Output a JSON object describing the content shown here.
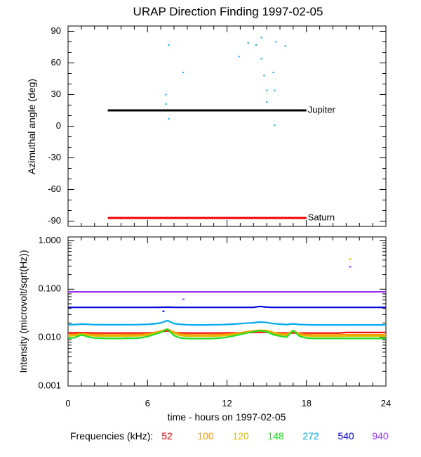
{
  "chart_data": [
    {
      "type": "scatter",
      "title": "URAP Direction Finding  1997-02-05",
      "ylabel": "Azimuthal angle (deg)",
      "xlabel": "",
      "xlim": [
        0,
        24
      ],
      "ylim": [
        -95,
        95
      ],
      "yticks": [
        90,
        60,
        30,
        0,
        -30,
        -60,
        -90
      ],
      "ytick_labels": [
        "90",
        "60",
        "30",
        "0",
        "-30",
        "-60",
        "-90"
      ],
      "reference_lines": [
        {
          "name": "Jupiter",
          "y": 15,
          "x": [
            3,
            18
          ],
          "color": "#000000"
        },
        {
          "name": "Saturn",
          "y": -87,
          "x": [
            3,
            18
          ],
          "color": "#ee0000"
        }
      ],
      "series": [
        {
          "name": "Direction points",
          "color": "#00aaee",
          "points": [
            [
              7.6,
              77
            ],
            [
              8.7,
              51
            ],
            [
              7.4,
              30
            ],
            [
              7.4,
              21
            ],
            [
              7.6,
              7
            ],
            [
              12.9,
              66
            ],
            [
              13.6,
              79
            ],
            [
              14.2,
              77
            ],
            [
              14.6,
              84
            ],
            [
              14.6,
              64
            ],
            [
              14.8,
              48
            ],
            [
              15.0,
              34
            ],
            [
              15.0,
              23
            ],
            [
              15.5,
              51
            ],
            [
              15.6,
              34
            ],
            [
              15.7,
              80
            ],
            [
              16.4,
              76
            ],
            [
              15.6,
              1
            ]
          ]
        }
      ]
    },
    {
      "type": "line",
      "title": "",
      "ylabel": "Intensity (microvolt/sqrt(Hz))",
      "xlabel": "time - hours on 1997-02-05",
      "xlim": [
        0,
        24
      ],
      "yscale": "log",
      "ylim": [
        0.001,
        1.2
      ],
      "yticks": [
        1.0,
        0.1,
        0.01,
        0.001
      ],
      "ytick_labels": [
        "1.000",
        "0.100",
        "0.010",
        "0.001"
      ],
      "xticks": [
        0,
        6,
        12,
        18,
        24
      ],
      "xtick_labels": [
        "0",
        "6",
        "12",
        "18",
        "24"
      ],
      "x": [
        0,
        0.5,
        1,
        1.5,
        2,
        2.5,
        3,
        3.5,
        4,
        4.5,
        5,
        5.5,
        6,
        6.5,
        7,
        7.5,
        8,
        8.5,
        9,
        9.5,
        10,
        10.5,
        11,
        11.5,
        12,
        12.5,
        13,
        13.5,
        14,
        14.5,
        15,
        15.5,
        16,
        16.5,
        17,
        17.5,
        18,
        18.5,
        19,
        19.5,
        20,
        20.5,
        21,
        21.5,
        22,
        22.5,
        23,
        23.5,
        24
      ],
      "series": [
        {
          "name": "52",
          "color": "#ee0000",
          "values": [
            0.0125,
            0.0125,
            0.0126,
            0.0125,
            0.0124,
            0.0124,
            0.0124,
            0.0124,
            0.0124,
            0.0124,
            0.0124,
            0.0124,
            0.0125,
            0.0127,
            0.0132,
            0.0138,
            0.0128,
            0.0125,
            0.0124,
            0.0124,
            0.0124,
            0.0124,
            0.0124,
            0.0124,
            0.0125,
            0.0125,
            0.0126,
            0.0127,
            0.0128,
            0.0129,
            0.0129,
            0.0126,
            0.0125,
            0.0124,
            0.0124,
            0.0124,
            0.0124,
            0.0124,
            0.0124,
            0.0124,
            0.0124,
            0.0124,
            0.0128,
            0.0128,
            0.0128,
            0.0128,
            0.0128,
            0.0128,
            0.0128
          ]
        },
        {
          "name": "100",
          "color": "#ff9900",
          "values": [
            0.0115,
            0.0116,
            0.0121,
            0.0118,
            0.0115,
            0.0115,
            0.0114,
            0.0114,
            0.0115,
            0.0115,
            0.0115,
            0.0116,
            0.012,
            0.0127,
            0.0136,
            0.015,
            0.013,
            0.0118,
            0.0115,
            0.0114,
            0.0114,
            0.0114,
            0.0115,
            0.0116,
            0.0118,
            0.0121,
            0.0126,
            0.0132,
            0.0138,
            0.0142,
            0.014,
            0.0128,
            0.0122,
            0.0118,
            0.0138,
            0.012,
            0.0115,
            0.0114,
            0.0114,
            0.0114,
            0.0114,
            0.0114,
            0.0115,
            0.0115,
            0.0115,
            0.0115,
            0.0115,
            0.0115,
            0.0115
          ]
        },
        {
          "name": "120",
          "color": "#ddbb00",
          "values": [
            0.0108,
            0.011,
            0.0118,
            0.0112,
            0.0108,
            0.0107,
            0.0107,
            0.0107,
            0.0107,
            0.0107,
            0.0108,
            0.0109,
            0.0113,
            0.0121,
            0.0131,
            0.0148,
            0.0122,
            0.011,
            0.0107,
            0.0106,
            0.0106,
            0.0106,
            0.0107,
            0.0108,
            0.0111,
            0.0115,
            0.0121,
            0.0128,
            0.0134,
            0.0138,
            0.0135,
            0.0122,
            0.0115,
            0.0111,
            0.0135,
            0.0113,
            0.0108,
            0.0106,
            0.0106,
            0.0106,
            0.0106,
            0.0106,
            0.0107,
            0.0107,
            0.0107,
            0.0107,
            0.0107,
            0.0107,
            0.0107
          ]
        },
        {
          "name": "148",
          "color": "#22dd22",
          "values": [
            0.0097,
            0.01,
            0.0114,
            0.0104,
            0.0098,
            0.0097,
            0.0096,
            0.0096,
            0.0096,
            0.0097,
            0.0097,
            0.0099,
            0.0105,
            0.0116,
            0.0128,
            0.015,
            0.011,
            0.0098,
            0.0096,
            0.0095,
            0.0095,
            0.0095,
            0.0096,
            0.0098,
            0.0102,
            0.0108,
            0.0116,
            0.0124,
            0.0132,
            0.014,
            0.0132,
            0.0115,
            0.0107,
            0.0102,
            0.014,
            0.0106,
            0.0098,
            0.0096,
            0.0096,
            0.0096,
            0.0096,
            0.0096,
            0.0096,
            0.0096,
            0.0096,
            0.0096,
            0.0096,
            0.0096,
            0.0096
          ]
        },
        {
          "name": "272",
          "color": "#00aaee",
          "values": [
            0.0185,
            0.0186,
            0.019,
            0.0188,
            0.0185,
            0.0184,
            0.0184,
            0.0184,
            0.0184,
            0.0184,
            0.0185,
            0.0186,
            0.0188,
            0.0192,
            0.02,
            0.0225,
            0.0195,
            0.0187,
            0.0184,
            0.0183,
            0.0183,
            0.0183,
            0.0184,
            0.0185,
            0.0187,
            0.019,
            0.0194,
            0.0198,
            0.0202,
            0.021,
            0.0205,
            0.0194,
            0.019,
            0.0186,
            0.0192,
            0.0186,
            0.0184,
            0.0183,
            0.0183,
            0.0183,
            0.0183,
            0.0183,
            0.0183,
            0.0183,
            0.0183,
            0.0183,
            0.0183,
            0.0183,
            0.0183
          ]
        },
        {
          "name": "540",
          "color": "#0000dd",
          "values": [
            0.042,
            0.042,
            0.042,
            0.042,
            0.042,
            0.042,
            0.042,
            0.042,
            0.042,
            0.042,
            0.042,
            0.042,
            0.042,
            0.042,
            0.0422,
            0.0425,
            0.042,
            0.042,
            0.042,
            0.042,
            0.042,
            0.042,
            0.042,
            0.042,
            0.042,
            0.042,
            0.042,
            0.042,
            0.042,
            0.044,
            0.0425,
            0.042,
            0.042,
            0.042,
            0.042,
            0.042,
            0.042,
            0.042,
            0.042,
            0.042,
            0.042,
            0.042,
            0.042,
            0.042,
            0.042,
            0.042,
            0.042,
            0.042,
            0.042
          ]
        },
        {
          "name": "940",
          "color": "#9933ff",
          "values": [
            0.088,
            0.088,
            0.088,
            0.088,
            0.088,
            0.088,
            0.088,
            0.088,
            0.088,
            0.088,
            0.088,
            0.088,
            0.088,
            0.088,
            0.088,
            0.088,
            0.088,
            0.088,
            0.088,
            0.088,
            0.088,
            0.088,
            0.088,
            0.088,
            0.088,
            0.088,
            0.088,
            0.088,
            0.088,
            0.088,
            0.088,
            0.088,
            0.088,
            0.088,
            0.088,
            0.088,
            0.088,
            0.088,
            0.088,
            0.088,
            0.088,
            0.088,
            0.088,
            0.088,
            0.088,
            0.088,
            0.088,
            0.088,
            0.088
          ]
        }
      ],
      "extra_points": [
        {
          "x": 21.3,
          "y": 0.42,
          "color": "#ddbb00"
        },
        {
          "x": 21.3,
          "y": 0.29,
          "color": "#9933ff"
        },
        {
          "x": 8.7,
          "y": 0.062,
          "color": "#9933ff"
        },
        {
          "x": 7.2,
          "y": 0.035,
          "color": "#0000dd"
        }
      ]
    }
  ],
  "legend": {
    "title": "Frequencies (kHz):",
    "items": [
      {
        "label": "52",
        "color": "#ee0000"
      },
      {
        "label": "100",
        "color": "#ff9900"
      },
      {
        "label": "120",
        "color": "#ddbb00"
      },
      {
        "label": "148",
        "color": "#22dd22"
      },
      {
        "label": "272",
        "color": "#00aaee"
      },
      {
        "label": "540",
        "color": "#0000dd"
      },
      {
        "label": "940",
        "color": "#9933ff"
      }
    ]
  }
}
